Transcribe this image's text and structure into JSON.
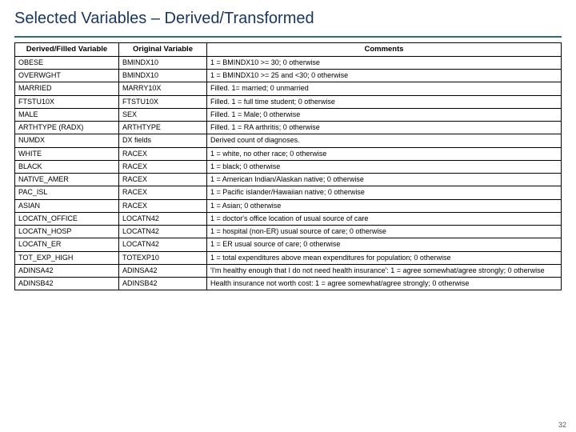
{
  "title": "Selected Variables – Derived/Transformed",
  "title_color": "#17365d",
  "rule_color": "#2f6e6e",
  "table": {
    "headers": [
      "Derived/Filled Variable",
      "Original Variable",
      "Comments"
    ],
    "rows": [
      [
        "OBESE",
        "BMINDX10",
        "1 = BMINDX10 >= 30; 0 otherwise"
      ],
      [
        "OVERWGHT",
        "BMINDX10",
        "1 = BMINDX10 >= 25 and <30; 0 otherwise"
      ],
      [
        "MARRIED",
        "MARRY10X",
        "Filled. 1= married; 0 unmarried"
      ],
      [
        "FTSTU10X",
        "FTSTU10X",
        "Filled. 1 = full time student; 0 otherwise"
      ],
      [
        "MALE",
        "SEX",
        "Filled. 1 = Male; 0 otherwise"
      ],
      [
        "ARTHTYPE (RADX)",
        "ARTHTYPE",
        "Filled. 1 = RA arthritis; 0 otherwise"
      ],
      [
        "NUMDX",
        "DX fields",
        "Derived count of diagnoses."
      ],
      [
        "WHITE",
        "RACEX",
        "1 = white, no other race; 0 otherwise"
      ],
      [
        "BLACK",
        "RACEX",
        "1 = black; 0 otherwise"
      ],
      [
        "NATIVE_AMER",
        "RACEX",
        "1 = American Indian/Alaskan native; 0 otherwise"
      ],
      [
        "PAC_ISL",
        "RACEX",
        "1 = Pacific islander/Hawaiian native; 0 otherwise"
      ],
      [
        "ASIAN",
        "RACEX",
        "1 = Asian; 0 otherwise"
      ],
      [
        "LOCATN_OFFICE",
        "LOCATN42",
        "1 = doctor's office location of usual source of care"
      ],
      [
        "LOCATN_HOSP",
        "LOCATN42",
        "1 = hospital (non-ER) usual source of care; 0 otherwise"
      ],
      [
        "LOCATN_ER",
        "LOCATN42",
        "1 = ER usual source of care; 0 otherwise"
      ],
      [
        "TOT_EXP_HIGH",
        "TOTEXP10",
        "1 = total expenditures above mean expenditures for population; 0 otherwise"
      ],
      [
        "ADINSA42",
        "ADINSA42",
        "'I'm healthy enough that I do not need health insurance': 1 = agree somewhat/agree strongly; 0 otherwise"
      ],
      [
        "ADINSB42",
        "ADINSB42",
        "Health insurance not worth cost: 1 = agree somewhat/agree strongly; 0 otherwise"
      ]
    ]
  },
  "page_number": "32"
}
